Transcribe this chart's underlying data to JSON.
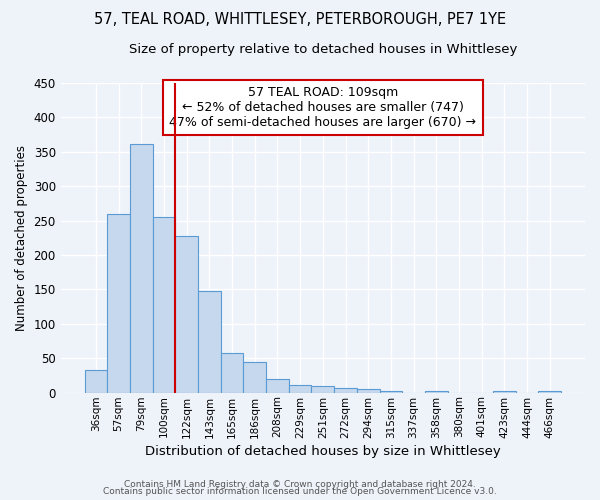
{
  "title_line1": "57, TEAL ROAD, WHITTLESEY, PETERBOROUGH, PE7 1YE",
  "title_line2": "Size of property relative to detached houses in Whittlesey",
  "xlabel": "Distribution of detached houses by size in Whittlesey",
  "ylabel": "Number of detached properties",
  "bar_labels": [
    "36sqm",
    "57sqm",
    "79sqm",
    "100sqm",
    "122sqm",
    "143sqm",
    "165sqm",
    "186sqm",
    "208sqm",
    "229sqm",
    "251sqm",
    "272sqm",
    "294sqm",
    "315sqm",
    "337sqm",
    "358sqm",
    "380sqm",
    "401sqm",
    "423sqm",
    "444sqm",
    "466sqm"
  ],
  "bar_values": [
    33,
    259,
    362,
    256,
    227,
    148,
    57,
    45,
    20,
    11,
    10,
    7,
    5,
    3,
    0,
    3,
    0,
    0,
    3,
    0,
    2
  ],
  "bar_color": "#c5d8ed",
  "bar_edge_color": "#5b9bd5",
  "vline_x": 3.5,
  "vline_color": "#cc0000",
  "annotation_title": "57 TEAL ROAD: 109sqm",
  "annotation_line1": "← 52% of detached houses are smaller (747)",
  "annotation_line2": "47% of semi-detached houses are larger (670) →",
  "annotation_box_color": "#ffffff",
  "annotation_box_edge": "#cc0000",
  "ylim": [
    0,
    450
  ],
  "yticks": [
    0,
    50,
    100,
    150,
    200,
    250,
    300,
    350,
    400,
    450
  ],
  "footer_line1": "Contains HM Land Registry data © Crown copyright and database right 2024.",
  "footer_line2": "Contains public sector information licensed under the Open Government Licence v3.0.",
  "bg_color": "#eef2f9",
  "grid_color": "#ffffff",
  "title_fontsize": 10.5,
  "subtitle_fontsize": 9.5
}
